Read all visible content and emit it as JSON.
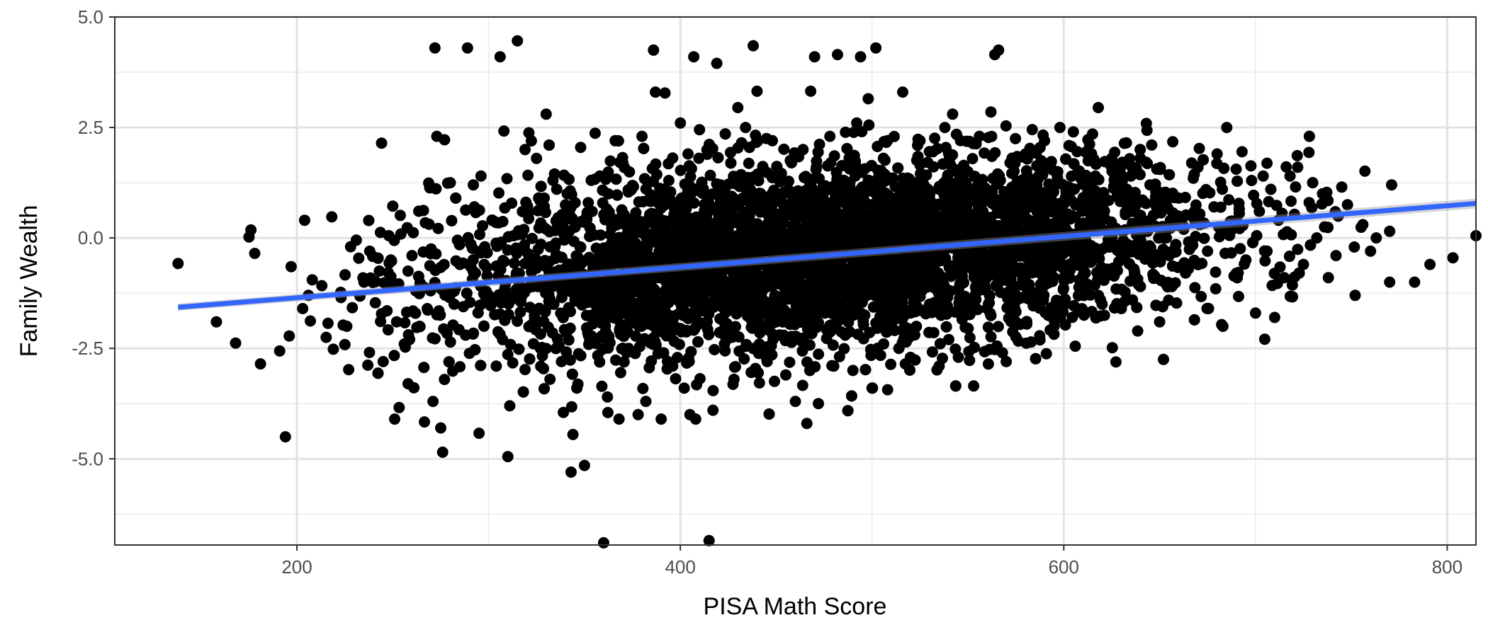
{
  "chart_data": {
    "type": "scatter",
    "xlabel": "PISA Math Score",
    "ylabel": "Family Wealth",
    "xlim": [
      105,
      815
    ],
    "ylim": [
      -6.95,
      5.0
    ],
    "x_ticks": [
      200,
      400,
      600,
      800
    ],
    "x_tick_labels": [
      "200",
      "400",
      "600",
      "800"
    ],
    "y_ticks": [
      5.0,
      2.5,
      0.0,
      -2.5,
      -5.0
    ],
    "y_tick_labels": [
      "5.0",
      "2.5",
      "0.0",
      "-2.5",
      "-5.0"
    ],
    "x_minor_gridlines": [
      300,
      500,
      700
    ],
    "y_minor_gridlines": [
      3.75,
      1.25,
      -1.25,
      -3.75,
      -6.25
    ],
    "grid": true,
    "legend": "none",
    "point_color": "#000000",
    "fit_line": {
      "method": "linear regression with confidence band",
      "color": "#3366FF",
      "x": [
        138,
        815
      ],
      "y": [
        -1.57,
        0.78
      ]
    },
    "points": [
      [
        138,
        -0.58
      ],
      [
        158,
        -1.9
      ],
      [
        168,
        -2.38
      ],
      [
        175,
        0.02
      ],
      [
        176,
        0.18
      ],
      [
        178,
        -0.35
      ],
      [
        181,
        -2.85
      ],
      [
        191,
        -2.56
      ],
      [
        194,
        -4.5
      ],
      [
        196,
        -2.22
      ],
      [
        197,
        -0.65
      ],
      [
        203,
        -1.6
      ],
      [
        204,
        0.4
      ],
      [
        206,
        -1.3
      ],
      [
        207,
        -1.88
      ],
      [
        208,
        -0.95
      ],
      [
        213,
        -1.08
      ],
      [
        219,
        -2.52
      ],
      [
        223,
        -1.35
      ],
      [
        226,
        -2.0
      ],
      [
        227,
        -2.98
      ],
      [
        228,
        -0.2
      ],
      [
        231,
        -0.05
      ],
      [
        235,
        -1.0
      ],
      [
        237,
        -2.88
      ],
      [
        238,
        -0.3
      ],
      [
        243,
        -0.75
      ],
      [
        245,
        -2.8
      ],
      [
        247,
        -1.65
      ],
      [
        248,
        0.05
      ],
      [
        249,
        -0.5
      ],
      [
        250,
        0.72
      ],
      [
        251,
        -4.1
      ],
      [
        252,
        -1.9
      ],
      [
        256,
        -2.4
      ],
      [
        258,
        -3.3
      ],
      [
        260,
        -0.4
      ],
      [
        262,
        -1.2
      ],
      [
        264,
        -2.0
      ],
      [
        266,
        0.62
      ],
      [
        268,
        -1.6
      ],
      [
        270,
        -0.25
      ],
      [
        271,
        -3.7
      ],
      [
        272,
        4.3
      ],
      [
        273,
        2.3
      ],
      [
        275,
        -4.3
      ],
      [
        276,
        -4.85
      ],
      [
        277,
        2.22
      ],
      [
        280,
        1.25
      ],
      [
        282,
        -1.5
      ],
      [
        285,
        -0.6
      ],
      [
        288,
        -2.2
      ],
      [
        289,
        4.3
      ],
      [
        292,
        1.2
      ],
      [
        295,
        -4.42
      ],
      [
        296,
        1.4
      ],
      [
        298,
        -0.2
      ],
      [
        300,
        -1.3
      ],
      [
        302,
        0.4
      ],
      [
        304,
        -2.9
      ],
      [
        306,
        4.1
      ],
      [
        308,
        2.42
      ],
      [
        310,
        -4.95
      ],
      [
        311,
        -3.8
      ],
      [
        313,
        0.05
      ],
      [
        315,
        4.46
      ],
      [
        316,
        -0.8
      ],
      [
        319,
        2.0
      ],
      [
        321,
        2.38
      ],
      [
        323,
        -1.1
      ],
      [
        325,
        1.8
      ],
      [
        327,
        -2.5
      ],
      [
        329,
        0.9
      ],
      [
        330,
        2.8
      ],
      [
        332,
        -3.2
      ],
      [
        334,
        -1.5
      ],
      [
        336,
        0.3
      ],
      [
        338,
        -2.8
      ],
      [
        339,
        -3.95
      ],
      [
        341,
        1.0
      ],
      [
        343,
        -5.3
      ],
      [
        344,
        -4.45
      ],
      [
        346,
        -3.4
      ],
      [
        348,
        2.05
      ],
      [
        350,
        -5.15
      ],
      [
        352,
        -2.2
      ],
      [
        354,
        0.6
      ],
      [
        356,
        -1.7
      ],
      [
        358,
        1.4
      ],
      [
        360,
        -6.9
      ],
      [
        362,
        -3.6
      ],
      [
        364,
        -0.9
      ],
      [
        366,
        2.2
      ],
      [
        368,
        -4.1
      ],
      [
        370,
        1.7
      ],
      [
        372,
        -2.6
      ],
      [
        375,
        0.3
      ],
      [
        378,
        -4.0
      ],
      [
        380,
        2.3
      ],
      [
        382,
        -3.7
      ],
      [
        384,
        -1.2
      ],
      [
        386,
        4.25
      ],
      [
        387,
        3.3
      ],
      [
        390,
        -4.1
      ],
      [
        392,
        3.28
      ],
      [
        394,
        1.3
      ],
      [
        396,
        -2.9
      ],
      [
        398,
        -0.4
      ],
      [
        400,
        2.6
      ],
      [
        402,
        -3.4
      ],
      [
        404,
        1.9
      ],
      [
        405,
        -4.0
      ],
      [
        407,
        4.1
      ],
      [
        408,
        -4.1
      ],
      [
        410,
        2.45
      ],
      [
        413,
        -0.6
      ],
      [
        415,
        -6.85
      ],
      [
        417,
        -3.9
      ],
      [
        419,
        3.95
      ],
      [
        421,
        1.2
      ],
      [
        423,
        -2.4
      ],
      [
        425,
        0.2
      ],
      [
        428,
        -3.2
      ],
      [
        430,
        2.95
      ],
      [
        432,
        -1.3
      ],
      [
        434,
        2.5
      ],
      [
        436,
        0.5
      ],
      [
        438,
        4.35
      ],
      [
        440,
        3.32
      ],
      [
        442,
        -2.6
      ],
      [
        444,
        1.5
      ],
      [
        446,
        -0.8
      ],
      [
        448,
        2.2
      ],
      [
        450,
        -1.9
      ],
      [
        452,
        0.9
      ],
      [
        455,
        -3.1
      ],
      [
        458,
        1.7
      ],
      [
        460,
        -3.7
      ],
      [
        462,
        -0.3
      ],
      [
        464,
        2.0
      ],
      [
        466,
        -4.2
      ],
      [
        468,
        3.32
      ],
      [
        470,
        4.1
      ],
      [
        472,
        -3.75
      ],
      [
        474,
        1.1
      ],
      [
        476,
        -1.4
      ],
      [
        478,
        2.3
      ],
      [
        480,
        -2.9
      ],
      [
        482,
        4.15
      ],
      [
        484,
        0.4
      ],
      [
        486,
        -2.2
      ],
      [
        488,
        1.8
      ],
      [
        490,
        -3.0
      ],
      [
        492,
        2.6
      ],
      [
        494,
        4.1
      ],
      [
        496,
        -0.9
      ],
      [
        498,
        3.15
      ],
      [
        500,
        -3.4
      ],
      [
        502,
        4.3
      ],
      [
        504,
        1.5
      ],
      [
        506,
        -2.4
      ],
      [
        508,
        2.2
      ],
      [
        510,
        -1.1
      ],
      [
        512,
        0.7
      ],
      [
        514,
        -2.5
      ],
      [
        516,
        3.3
      ],
      [
        518,
        1.2
      ],
      [
        520,
        -1.7
      ],
      [
        525,
        2.2
      ],
      [
        530,
        -1.5
      ],
      [
        535,
        -2.9
      ],
      [
        538,
        2.5
      ],
      [
        540,
        -2.3
      ],
      [
        542,
        2.8
      ],
      [
        545,
        -2.7
      ],
      [
        550,
        1.5
      ],
      [
        553,
        -3.35
      ],
      [
        556,
        2.3
      ],
      [
        560,
        -1.6
      ],
      [
        562,
        2.85
      ],
      [
        564,
        4.15
      ],
      [
        566,
        4.25
      ],
      [
        568,
        -2.6
      ],
      [
        570,
        -2.8
      ],
      [
        572,
        1.7
      ],
      [
        575,
        -1.9
      ],
      [
        580,
        1.9
      ],
      [
        585,
        -1.4
      ],
      [
        590,
        2.2
      ],
      [
        595,
        -1.8
      ],
      [
        598,
        2.5
      ],
      [
        600,
        -0.9
      ],
      [
        605,
        2.4
      ],
      [
        606,
        -2.45
      ],
      [
        610,
        -1.2
      ],
      [
        615,
        2.35
      ],
      [
        618,
        2.95
      ],
      [
        620,
        -1.5
      ],
      [
        625,
        1.8
      ],
      [
        630,
        -1.6
      ],
      [
        635,
        1.4
      ],
      [
        640,
        -1.1
      ],
      [
        645,
        1.2
      ],
      [
        650,
        -1.9
      ],
      [
        652,
        -2.75
      ],
      [
        655,
        -0.4
      ],
      [
        660,
        0.9
      ],
      [
        665,
        -0.7
      ],
      [
        670,
        1.6
      ],
      [
        675,
        -0.3
      ],
      [
        680,
        1.9
      ],
      [
        683,
        -2.0
      ],
      [
        685,
        2.5
      ],
      [
        688,
        0.2
      ],
      [
        690,
        -0.8
      ],
      [
        693,
        1.95
      ],
      [
        695,
        -0.5
      ],
      [
        698,
        1.3
      ],
      [
        700,
        -1.7
      ],
      [
        702,
        0.6
      ],
      [
        704,
        1.4
      ],
      [
        706,
        -0.3
      ],
      [
        708,
        1.1
      ],
      [
        710,
        -1.8
      ],
      [
        712,
        0.4
      ],
      [
        715,
        -0.9
      ],
      [
        718,
        1.4
      ],
      [
        722,
        1.6
      ],
      [
        725,
        -0.6
      ],
      [
        728,
        0.8
      ],
      [
        732,
        0.0
      ],
      [
        735,
        1.0
      ],
      [
        738,
        -0.9
      ],
      [
        742,
        -0.4
      ],
      [
        745,
        1.15
      ],
      [
        748,
        0.75
      ],
      [
        752,
        -1.3
      ],
      [
        756,
        0.3
      ],
      [
        760,
        -0.3
      ],
      [
        763,
        0.0
      ],
      [
        770,
        0.15
      ],
      [
        771,
        1.2
      ],
      [
        770,
        -1.0
      ],
      [
        783,
        -1.0
      ],
      [
        791,
        -0.6
      ],
      [
        803,
        -0.45
      ],
      [
        815,
        0.05
      ]
    ],
    "dense_cloud": {
      "x_center": 480,
      "x_sd": 100,
      "y_slope": 0.00347,
      "y_intercept": -2.05,
      "y_sd": 1.05,
      "count": 5200
    }
  }
}
